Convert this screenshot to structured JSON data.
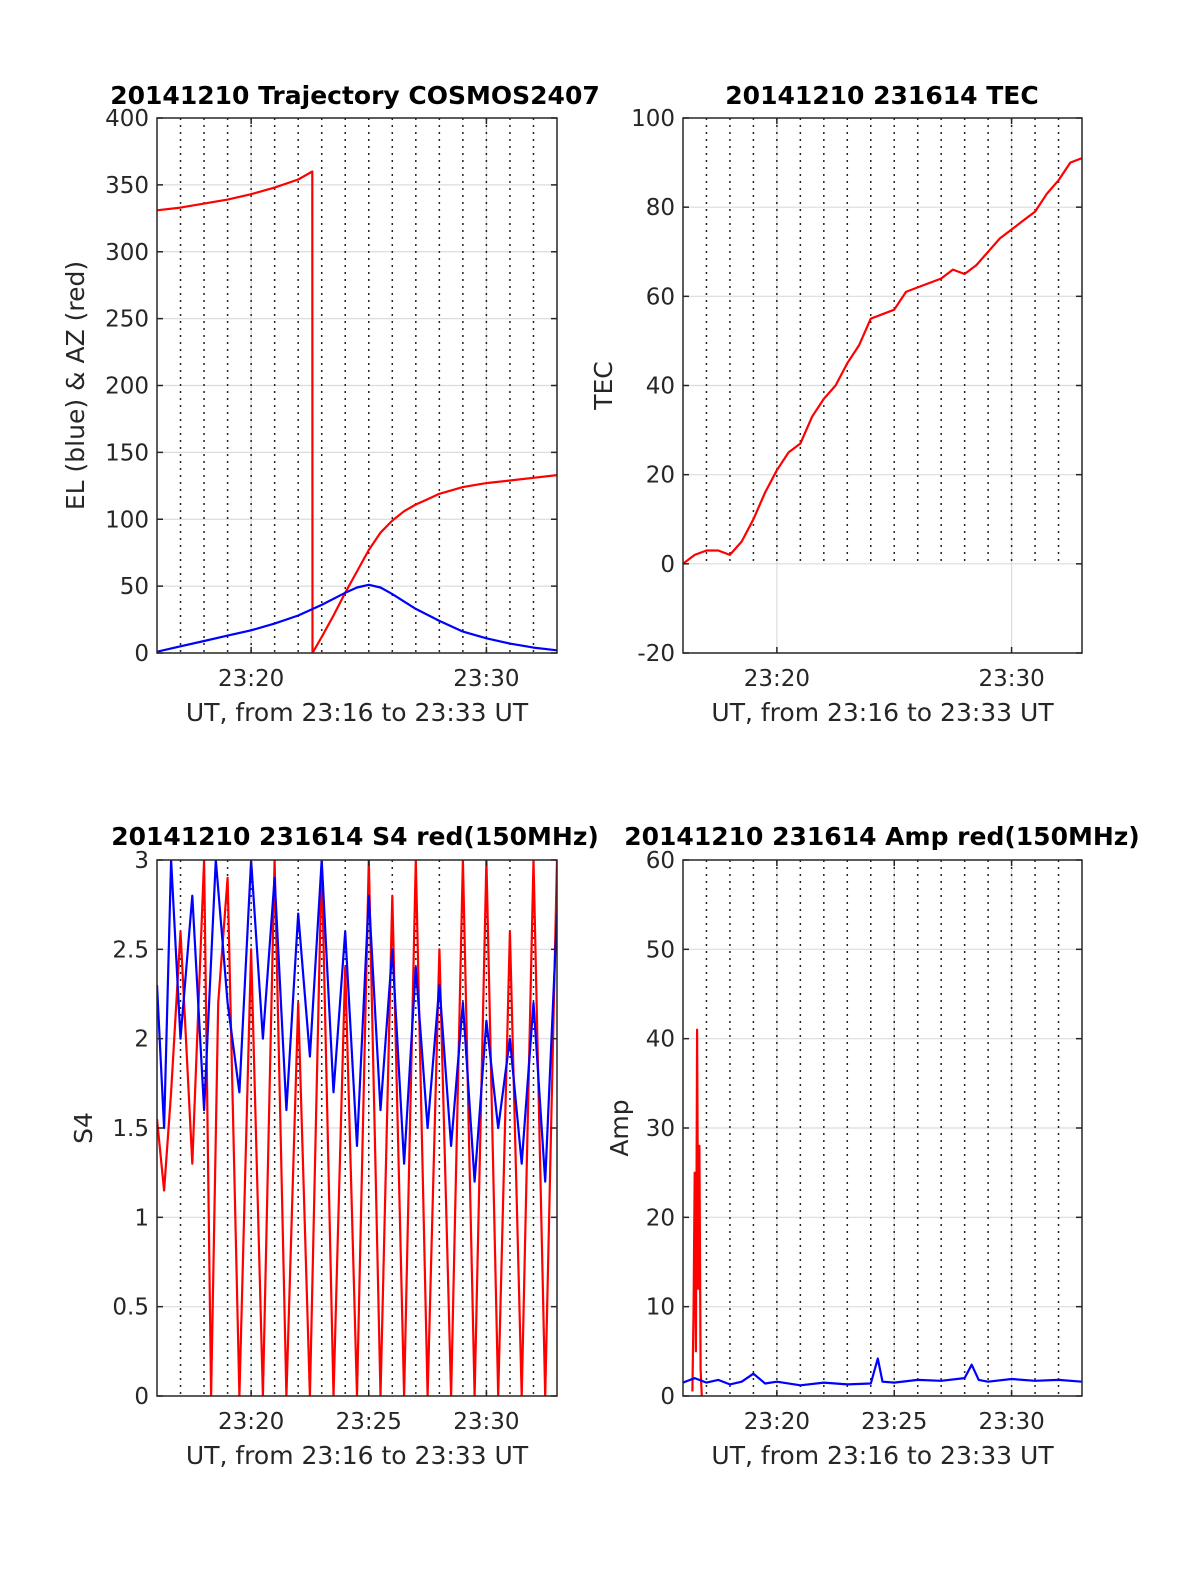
{
  "x_axis_label": "UT, from 23:16 to 23:33 UT",
  "chart_data": [
    {
      "id": "trajectory",
      "type": "line",
      "title": "20141210 Trajectory COSMOS2407",
      "xlabel": "UT, from 23:16 to 23:33 UT",
      "ylabel": "EL (blue) & AZ (red)",
      "xlim_minutes": [
        16.0,
        33.0
      ],
      "ylim": [
        0,
        400
      ],
      "yticks": [
        0,
        50,
        100,
        150,
        200,
        250,
        300,
        350,
        400
      ],
      "xticks": [
        {
          "m": 20,
          "label": "23:20"
        },
        {
          "m": 30,
          "label": "23:30"
        }
      ],
      "grid": "dotted vertical every 1 min, solid horizontal",
      "series": [
        {
          "color": "#ff0000",
          "x": [
            16.0,
            17.0,
            18.0,
            19.0,
            20.0,
            21.0,
            22.0,
            22.6,
            22.61,
            23.0,
            23.5,
            24.0,
            24.5,
            25.0,
            25.5,
            26.0,
            26.5,
            27.0,
            27.5,
            28.0,
            29.0,
            30.0,
            31.0,
            32.0,
            33.0
          ],
          "y": [
            331,
            333,
            336,
            339,
            343,
            348,
            354,
            360,
            0,
            12,
            28,
            45,
            61,
            77,
            90,
            99,
            106,
            111,
            115,
            119,
            124,
            127,
            129,
            131,
            133
          ]
        },
        {
          "color": "#0000ff",
          "x": [
            16.0,
            17.0,
            18.0,
            19.0,
            20.0,
            21.0,
            22.0,
            23.0,
            24.0,
            24.5,
            25.0,
            25.5,
            26.0,
            27.0,
            28.0,
            29.0,
            30.0,
            31.0,
            32.0,
            33.0
          ],
          "y": [
            1,
            5,
            9,
            13,
            17,
            22,
            28,
            36,
            45,
            49,
            51,
            49,
            44,
            33,
            24,
            16,
            11,
            7,
            4,
            2
          ]
        }
      ]
    },
    {
      "id": "tec",
      "type": "line",
      "title": "20141210 231614 TEC",
      "xlabel": "UT, from 23:16 to 23:33 UT",
      "ylabel": "TEC",
      "xlim_minutes": [
        16.0,
        33.0
      ],
      "ylim": [
        -20,
        100
      ],
      "yticks": [
        -20,
        0,
        20,
        40,
        60,
        80,
        100
      ],
      "xticks": [
        {
          "m": 20,
          "label": "23:20"
        },
        {
          "m": 30,
          "label": "23:30"
        }
      ],
      "grid": "dotted vertical every 1 min above y=0, solid horizontal",
      "series": [
        {
          "color": "#ff0000",
          "x": [
            16.0,
            16.5,
            17.0,
            17.5,
            18.0,
            18.5,
            19.0,
            19.5,
            20.0,
            20.5,
            21.0,
            21.5,
            22.0,
            22.5,
            23.0,
            23.5,
            24.0,
            24.5,
            25.0,
            25.5,
            26.0,
            26.5,
            27.0,
            27.5,
            28.0,
            28.5,
            29.0,
            29.5,
            30.0,
            30.5,
            31.0,
            31.5,
            32.0,
            32.5,
            33.0
          ],
          "y": [
            0,
            2,
            3,
            3,
            2,
            5,
            10,
            16,
            21,
            25,
            27,
            33,
            37,
            40,
            45,
            49,
            55,
            56,
            57,
            61,
            62,
            63,
            64,
            66,
            65,
            67,
            70,
            73,
            75,
            77,
            79,
            83,
            86,
            90,
            91
          ]
        }
      ]
    },
    {
      "id": "s4",
      "type": "line",
      "title": "20141210 231614 S4 red(150MHz)",
      "xlabel": "UT, from 23:16 to 23:33 UT",
      "ylabel": "S4",
      "xlim_minutes": [
        16.0,
        33.0
      ],
      "ylim": [
        0,
        3
      ],
      "yticks": [
        0,
        0.5,
        1,
        1.5,
        2,
        2.5,
        3
      ],
      "xticks": [
        {
          "m": 20,
          "label": "23:20"
        },
        {
          "m": 25,
          "label": "23:25"
        },
        {
          "m": 30,
          "label": "23:30"
        }
      ],
      "grid": "dotted vertical every 1 min, solid horizontal",
      "series": [
        {
          "color": "#ff0000",
          "x": [
            16.0,
            16.3,
            16.6,
            17.0,
            17.5,
            18.0,
            18.3,
            18.6,
            19.0,
            19.5,
            20.0,
            20.5,
            21.0,
            21.5,
            22.0,
            22.5,
            23.0,
            23.5,
            24.0,
            24.5,
            25.0,
            25.5,
            26.0,
            26.5,
            27.0,
            27.5,
            28.0,
            28.5,
            29.0,
            29.5,
            30.0,
            30.5,
            31.0,
            31.5,
            32.0,
            32.5,
            33.0
          ],
          "y": [
            1.55,
            1.15,
            1.7,
            2.6,
            1.3,
            3.0,
            0.0,
            2.2,
            2.9,
            0.0,
            2.5,
            0.0,
            3.0,
            0.0,
            2.2,
            0.0,
            3.0,
            0.0,
            2.4,
            0.0,
            3.0,
            0.0,
            2.8,
            0.0,
            3.0,
            0.0,
            2.5,
            0.0,
            3.0,
            0.0,
            3.0,
            0.0,
            2.6,
            0.0,
            3.0,
            0.0,
            3.0
          ]
        },
        {
          "color": "#0000ff",
          "x": [
            16.0,
            16.3,
            16.6,
            17.0,
            17.5,
            18.0,
            18.5,
            19.0,
            19.5,
            20.0,
            20.5,
            21.0,
            21.5,
            22.0,
            22.5,
            23.0,
            23.5,
            24.0,
            24.5,
            25.0,
            25.5,
            26.0,
            26.5,
            27.0,
            27.5,
            28.0,
            28.5,
            29.0,
            29.5,
            30.0,
            30.5,
            31.0,
            31.5,
            32.0,
            32.5,
            33.0
          ],
          "y": [
            2.3,
            1.5,
            3.0,
            2.0,
            2.8,
            1.6,
            3.0,
            2.2,
            1.7,
            3.0,
            2.0,
            2.9,
            1.6,
            2.7,
            1.9,
            3.0,
            1.7,
            2.6,
            1.4,
            2.8,
            1.6,
            2.5,
            1.3,
            2.4,
            1.5,
            2.3,
            1.4,
            2.2,
            1.2,
            2.1,
            1.5,
            2.0,
            1.3,
            2.2,
            1.2,
            2.7
          ]
        }
      ]
    },
    {
      "id": "amp",
      "type": "line",
      "title": "20141210 231614 Amp red(150MHz)",
      "xlabel": "UT, from 23:16 to 23:33 UT",
      "ylabel": "Amp",
      "xlim_minutes": [
        16.0,
        33.0
      ],
      "ylim": [
        0,
        60
      ],
      "yticks": [
        0,
        10,
        20,
        30,
        40,
        50,
        60
      ],
      "xticks": [
        {
          "m": 20,
          "label": "23:20"
        },
        {
          "m": 25,
          "label": "23:25"
        },
        {
          "m": 30,
          "label": "23:30"
        }
      ],
      "grid": "dotted vertical every 1 min, solid horizontal",
      "series": [
        {
          "color": "#ff0000",
          "x": [
            16.4,
            16.45,
            16.5,
            16.55,
            16.6,
            16.65,
            16.7,
            16.75,
            16.8
          ],
          "y": [
            0.5,
            10,
            25,
            5,
            41,
            12,
            28,
            3,
            0
          ]
        },
        {
          "color": "#0000ff",
          "x": [
            16.0,
            16.5,
            17.0,
            17.5,
            18.0,
            18.5,
            19.0,
            19.5,
            20.0,
            21.0,
            22.0,
            23.0,
            24.0,
            24.3,
            24.5,
            25.0,
            26.0,
            27.0,
            28.0,
            28.3,
            28.6,
            29.0,
            30.0,
            31.0,
            32.0,
            33.0
          ],
          "y": [
            1.5,
            2.0,
            1.5,
            1.8,
            1.3,
            1.6,
            2.5,
            1.4,
            1.6,
            1.2,
            1.5,
            1.3,
            1.4,
            4.2,
            1.6,
            1.5,
            1.8,
            1.7,
            2.0,
            3.5,
            1.8,
            1.6,
            1.9,
            1.7,
            1.8,
            1.6
          ]
        }
      ]
    }
  ]
}
